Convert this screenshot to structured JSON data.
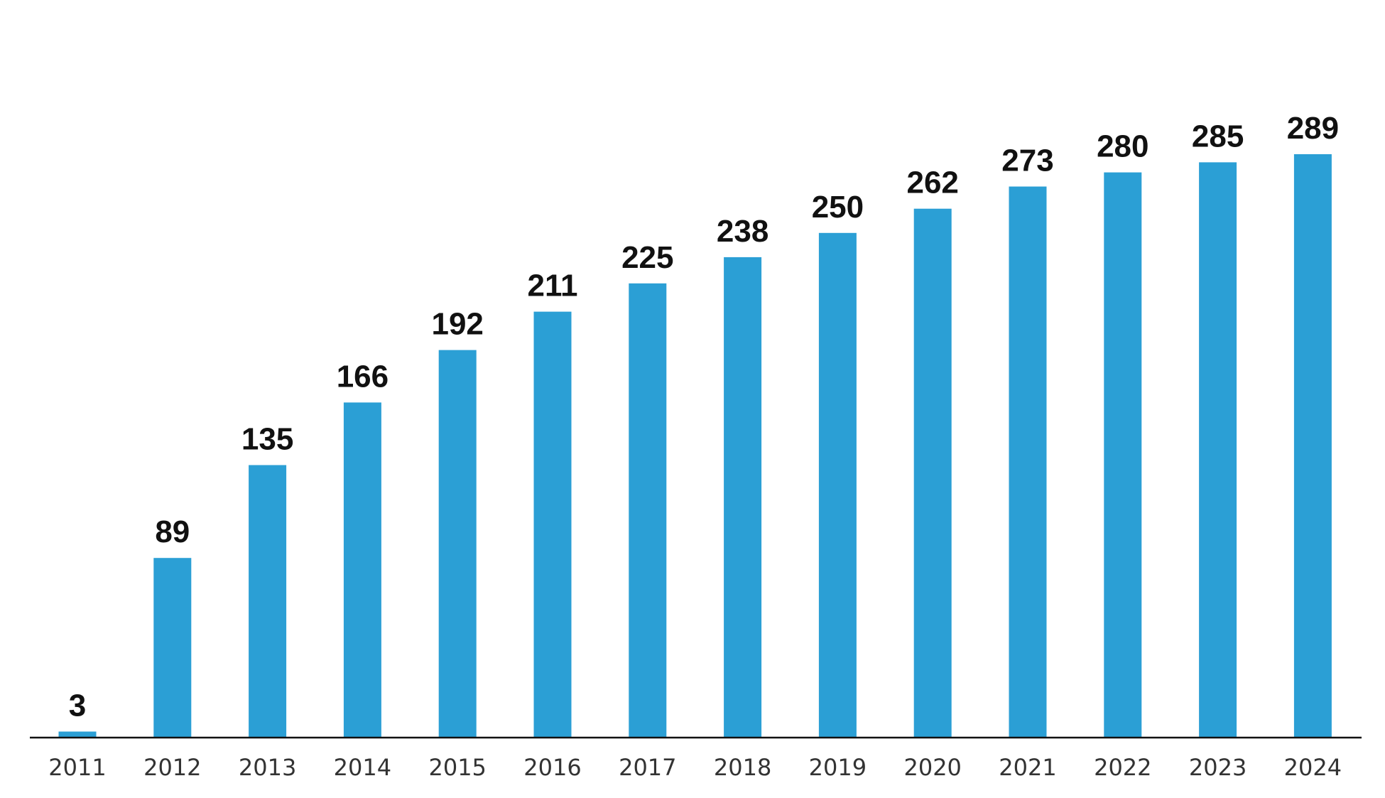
{
  "chart_data": {
    "type": "bar",
    "title": "",
    "xlabel": "",
    "ylabel": "",
    "categories": [
      "2011",
      "2012",
      "2013",
      "2014",
      "2015",
      "2016",
      "2017",
      "2018",
      "2019",
      "2020",
      "2021",
      "2022",
      "2023",
      "2024"
    ],
    "values": [
      3,
      89,
      135,
      166,
      192,
      211,
      225,
      238,
      250,
      262,
      273,
      280,
      285,
      289
    ],
    "ylim": [
      0,
      289
    ],
    "grid": false,
    "legend": "none",
    "data_labels": true,
    "colors": {
      "bar": "#2B9FD5",
      "axis": "#111111",
      "value_label": "#111111",
      "tick_label": "#333333"
    }
  }
}
